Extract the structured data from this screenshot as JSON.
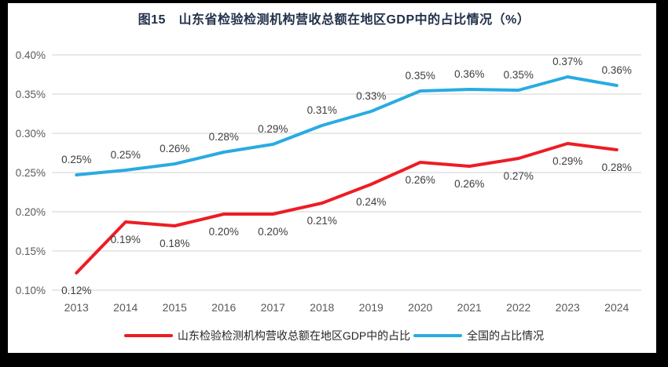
{
  "title": "图15　山东省检验检测机构营收总额在地区GDP中的占比情况（%）",
  "chart_data": {
    "type": "line",
    "title": "图15　山东省检验检测机构营收总额在地区GDP中的占比情况（%）",
    "categories": [
      "2013",
      "2014",
      "2015",
      "2016",
      "2017",
      "2018",
      "2019",
      "2020",
      "2021",
      "2022",
      "2023",
      "2024"
    ],
    "series": [
      {
        "name": "山东检验检测机构营收总额在地区GDP中的占比",
        "color": "#ed1c24",
        "values": [
          0.12,
          0.19,
          0.18,
          0.2,
          0.2,
          0.21,
          0.24,
          0.26,
          0.26,
          0.27,
          0.29,
          0.28
        ],
        "plot_values": [
          0.122,
          0.187,
          0.182,
          0.197,
          0.197,
          0.211,
          0.235,
          0.263,
          0.258,
          0.268,
          0.287,
          0.279
        ],
        "label_position": "below"
      },
      {
        "name": "全国的占比情况",
        "color": "#29abe2",
        "values": [
          0.25,
          0.25,
          0.26,
          0.28,
          0.29,
          0.31,
          0.33,
          0.35,
          0.36,
          0.35,
          0.37,
          0.36
        ],
        "plot_values": [
          0.247,
          0.253,
          0.261,
          0.276,
          0.286,
          0.31,
          0.328,
          0.354,
          0.356,
          0.355,
          0.372,
          0.361
        ],
        "label_position": "above"
      }
    ],
    "xlabel": "",
    "ylabel": "",
    "ylim": [
      0.1,
      0.4
    ],
    "ytick_step": 0.05,
    "ytick_labels": [
      "0.10%",
      "0.15%",
      "0.20%",
      "0.25%",
      "0.30%",
      "0.35%",
      "0.40%"
    ],
    "grid": true,
    "legend_position": "bottom"
  },
  "colors": {
    "page_frame": "#000000",
    "panel_background": "#ffffff",
    "gridline": "#d9d9d9",
    "axis_text": "#595959",
    "data_label_text": "#3d3d3d",
    "title_text": "#22304a"
  }
}
